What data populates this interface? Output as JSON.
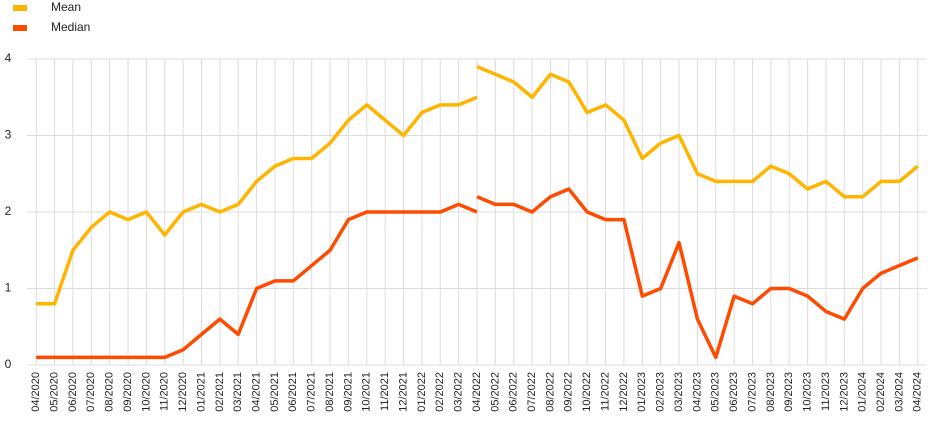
{
  "chart_data": {
    "type": "line",
    "categories": [
      "04/2020",
      "05/2020",
      "06/2020",
      "07/2020",
      "08/2020",
      "09/2020",
      "10/2020",
      "11/2020",
      "12/2020",
      "01/2021",
      "02/2021",
      "03/2021",
      "04/2021",
      "05/2021",
      "06/2021",
      "07/2021",
      "08/2021",
      "09/2021",
      "10/2021",
      "11/2021",
      "12/2021",
      "01/2022",
      "02/2022",
      "03/2022",
      "04/2022",
      "05/2022",
      "06/2022",
      "07/2022",
      "08/2022",
      "09/2022",
      "10/2022",
      "11/2022",
      "12/2022",
      "01/2023",
      "02/2023",
      "03/2023",
      "04/2023",
      "05/2023",
      "06/2023",
      "07/2023",
      "08/2023",
      "09/2023",
      "10/2023",
      "11/2023",
      "12/2023",
      "01/2024",
      "02/2024",
      "03/2024",
      "04/2024"
    ],
    "series": [
      {
        "name": "Mean",
        "color": "#ffb400",
        "values": [
          0.8,
          0.8,
          1.5,
          1.8,
          2.0,
          1.9,
          2.0,
          1.7,
          2.0,
          2.1,
          2.0,
          2.1,
          2.4,
          2.6,
          2.7,
          2.7,
          2.9,
          3.2,
          3.4,
          3.2,
          3.0,
          3.3,
          3.4,
          3.4,
          3.5,
          null,
          null,
          null,
          null,
          null,
          null,
          null,
          null,
          null,
          null,
          null,
          null,
          null,
          null,
          null,
          null,
          null,
          null,
          null,
          null,
          null,
          null,
          null,
          null
        ]
      },
      {
        "name": "Median",
        "color": "#ff4b00",
        "values": [
          0.1,
          0.1,
          0.1,
          0.1,
          0.1,
          0.1,
          0.1,
          0.1,
          0.2,
          0.4,
          0.6,
          0.4,
          1.0,
          1.1,
          1.1,
          1.3,
          1.5,
          1.9,
          2.0,
          2.0,
          2.0,
          2.0,
          2.0,
          2.1,
          2.0,
          null,
          null,
          null,
          null,
          null,
          null,
          null,
          null,
          null,
          null,
          null,
          null,
          null,
          null,
          null,
          null,
          null,
          null,
          null,
          null,
          null,
          null,
          null,
          null
        ]
      },
      {
        "color": "#ffb400",
        "values": [
          null,
          null,
          null,
          null,
          null,
          null,
          null,
          null,
          null,
          null,
          null,
          null,
          null,
          null,
          null,
          null,
          null,
          null,
          null,
          null,
          null,
          null,
          null,
          null,
          3.9,
          3.8,
          3.7,
          3.5,
          3.8,
          3.7,
          3.3,
          3.4,
          3.2,
          2.7,
          2.9,
          3.0,
          2.5,
          2.4,
          2.4,
          2.4,
          2.6,
          2.5,
          2.3,
          2.4,
          2.2,
          2.2,
          2.4,
          2.4,
          2.6
        ]
      },
      {
        "color": "#ff4b00",
        "values": [
          null,
          null,
          null,
          null,
          null,
          null,
          null,
          null,
          null,
          null,
          null,
          null,
          null,
          null,
          null,
          null,
          null,
          null,
          null,
          null,
          null,
          null,
          null,
          null,
          2.2,
          2.1,
          2.1,
          2.0,
          2.2,
          2.3,
          2.0,
          1.9,
          1.9,
          0.9,
          1.0,
          1.6,
          0.6,
          0.1,
          0.9,
          0.8,
          1.0,
          1.0,
          0.9,
          0.7,
          0.6,
          1.0,
          1.2,
          1.3,
          1.4
        ]
      }
    ],
    "ylim": [
      0,
      4
    ],
    "yticks": [
      0,
      1,
      2,
      3,
      4
    ],
    "grid": true,
    "legend": "top-left"
  }
}
